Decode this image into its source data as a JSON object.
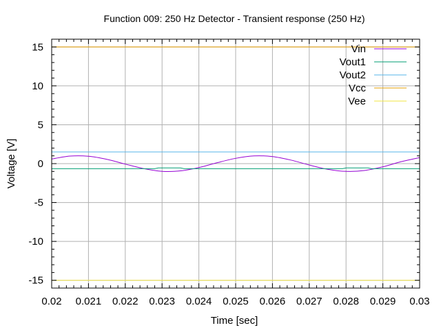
{
  "chart_data": {
    "type": "line",
    "title": "Function 009: 250 Hz Detector - Transient response (250 Hz)",
    "xlabel": "Time [sec]",
    "ylabel": "Voltage [V]",
    "xlim": [
      0.02,
      0.03
    ],
    "ylim": [
      -16,
      16
    ],
    "grid": true,
    "legend_position": "top-right",
    "x_ticks": [
      "0.02",
      "0.021",
      "0.022",
      "0.023",
      "0.024",
      "0.025",
      "0.026",
      "0.027",
      "0.028",
      "0.029",
      "0.03"
    ],
    "y_ticks": [
      "15",
      "10",
      "5",
      "0",
      "-5",
      "-10",
      "-15"
    ],
    "series": [
      {
        "name": "Vin",
        "color": "#9400d3",
        "x": [
          0.02,
          0.0205,
          0.021,
          0.0215,
          0.022,
          0.0225,
          0.023,
          0.0235,
          0.024,
          0.0245,
          0.025,
          0.0255,
          0.026,
          0.0265,
          0.027,
          0.0275,
          0.028,
          0.0285,
          0.029,
          0.0295,
          0.03
        ],
        "y": [
          0.59,
          0.97,
          0.95,
          0.55,
          -0.06,
          -0.64,
          -0.99,
          -0.93,
          -0.51,
          0.12,
          0.68,
          0.99,
          0.91,
          0.46,
          -0.18,
          -0.73,
          -1.0,
          -0.88,
          -0.41,
          0.25,
          0.77
        ]
      },
      {
        "name": "Vout1",
        "color": "#009e73",
        "x": [
          0.02,
          0.0228,
          0.0229,
          0.0235,
          0.0236,
          0.0279,
          0.028,
          0.0286,
          0.0287,
          0.03
        ],
        "y": [
          -0.65,
          -0.65,
          -0.55,
          -0.55,
          -0.65,
          -0.65,
          -0.55,
          -0.55,
          -0.65,
          -0.65
        ]
      },
      {
        "name": "Vout2",
        "color": "#56b4e9",
        "x": [
          0.02,
          0.03
        ],
        "y": [
          1.5,
          1.5
        ]
      },
      {
        "name": "Vcc",
        "color": "#e69f00",
        "x": [
          0.02,
          0.03
        ],
        "y": [
          15,
          15
        ]
      },
      {
        "name": "Vee",
        "color": "#f0e442",
        "x": [
          0.02,
          0.03
        ],
        "y": [
          -15,
          -15
        ]
      }
    ]
  }
}
